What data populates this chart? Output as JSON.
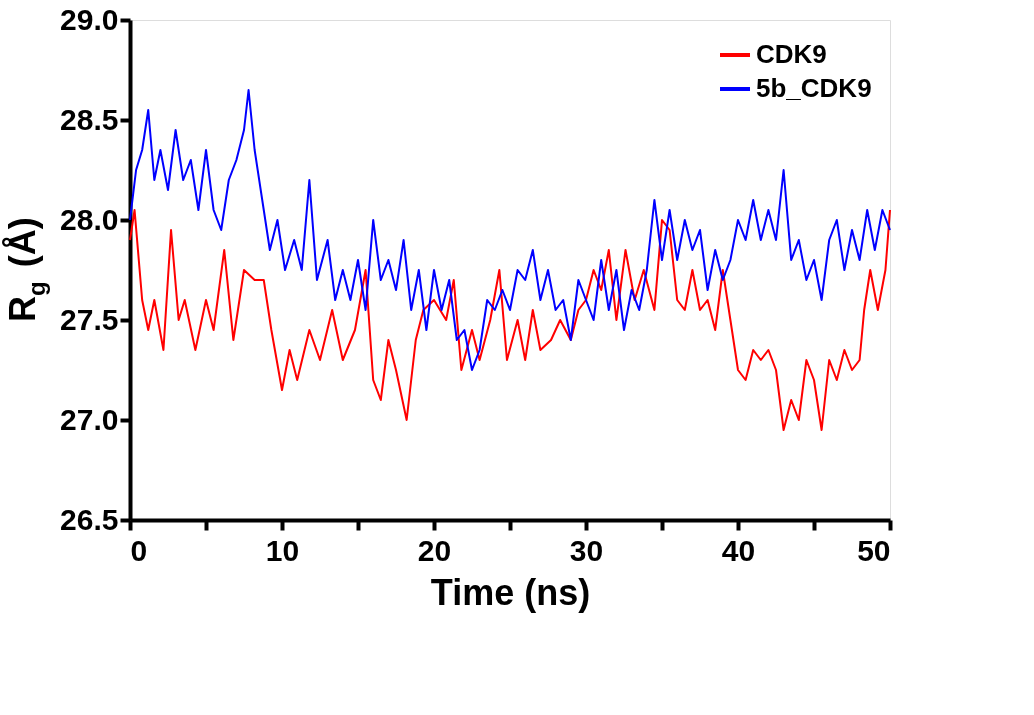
{
  "chart_data": {
    "type": "line",
    "xlabel": "Time (ns)",
    "ylabel": "R$_{g}$ (Å)",
    "xlim": [
      0,
      50
    ],
    "ylim": [
      26.5,
      29
    ],
    "xticks": [
      0,
      {
        "value": 5,
        "label": null
      },
      10,
      {
        "value": 15,
        "label": null
      },
      20,
      {
        "value": 25,
        "label": null
      },
      30,
      {
        "value": 35,
        "label": null
      },
      40,
      {
        "value": 45,
        "label": null
      },
      50
    ],
    "yticks": [
      26.5,
      {
        "value": 27,
        "label": "27.0"
      },
      27.5,
      {
        "value": 28,
        "label": "28.0"
      },
      28.5,
      {
        "value": 29,
        "label": "29.0"
      }
    ],
    "grid": false,
    "legend": "top right",
    "marker": "none",
    "line_style": "solid",
    "series": [
      {
        "name": "CDK9",
        "color": "#ff0000",
        "x": [
          0,
          0.3,
          0.8,
          1.2,
          1.6,
          2.2,
          2.7,
          3.2,
          3.6,
          4.3,
          5,
          5.5,
          6.2,
          6.8,
          7.5,
          8.2,
          8.8,
          9.3,
          10,
          10.5,
          11,
          11.8,
          12.5,
          13.3,
          14,
          14.8,
          15.5,
          16,
          16.5,
          17,
          17.5,
          18.2,
          18.8,
          19.3,
          20,
          20.8,
          21.3,
          21.8,
          22.5,
          23,
          23.7,
          24.3,
          24.8,
          25.5,
          26,
          26.5,
          27,
          27.7,
          28.3,
          29,
          29.5,
          30,
          30.5,
          31,
          31.5,
          32,
          32.6,
          33.2,
          33.8,
          34.5,
          35,
          35.5,
          36,
          36.5,
          37,
          37.5,
          38,
          38.5,
          39,
          39.5,
          40,
          40.5,
          41,
          41.5,
          42,
          42.5,
          43,
          43.5,
          44,
          44.5,
          45,
          45.5,
          46,
          46.5,
          47,
          47.5,
          48,
          48.3,
          48.7,
          49.2,
          49.7,
          50
        ],
        "values": [
          27.9,
          28.05,
          27.6,
          27.45,
          27.6,
          27.35,
          27.95,
          27.5,
          27.6,
          27.35,
          27.6,
          27.45,
          27.85,
          27.4,
          27.75,
          27.7,
          27.7,
          27.45,
          27.15,
          27.35,
          27.2,
          27.45,
          27.3,
          27.55,
          27.3,
          27.45,
          27.75,
          27.2,
          27.1,
          27.4,
          27.25,
          27.0,
          27.4,
          27.55,
          27.6,
          27.5,
          27.7,
          27.25,
          27.45,
          27.3,
          27.5,
          27.75,
          27.3,
          27.5,
          27.3,
          27.55,
          27.35,
          27.4,
          27.5,
          27.4,
          27.55,
          27.6,
          27.75,
          27.65,
          27.85,
          27.5,
          27.85,
          27.6,
          27.75,
          27.55,
          28.0,
          27.95,
          27.6,
          27.55,
          27.75,
          27.55,
          27.6,
          27.45,
          27.75,
          27.5,
          27.25,
          27.2,
          27.35,
          27.3,
          27.35,
          27.25,
          26.95,
          27.1,
          27.0,
          27.3,
          27.2,
          26.95,
          27.3,
          27.2,
          27.35,
          27.25,
          27.3,
          27.55,
          27.75,
          27.55,
          27.75,
          28.05
        ]
      },
      {
        "name": "5b_CDK9",
        "color": "#0000ff",
        "x": [
          0,
          0.4,
          0.8,
          1.2,
          1.6,
          2,
          2.5,
          3,
          3.5,
          4,
          4.5,
          5,
          5.5,
          6,
          6.5,
          7,
          7.5,
          7.8,
          8.2,
          8.7,
          9.2,
          9.7,
          10.2,
          10.8,
          11.3,
          11.8,
          12.3,
          13,
          13.5,
          14,
          14.5,
          15,
          15.5,
          16,
          16.5,
          17,
          17.5,
          18,
          18.5,
          19,
          19.5,
          20,
          20.5,
          21,
          21.5,
          22,
          22.5,
          23,
          23.5,
          24,
          24.5,
          25,
          25.5,
          26,
          26.5,
          27,
          27.5,
          28,
          28.5,
          29,
          29.5,
          30,
          30.5,
          31,
          31.5,
          32,
          32.5,
          33,
          33.5,
          34,
          34.5,
          35,
          35.5,
          36,
          36.5,
          37,
          37.5,
          38,
          38.5,
          39,
          39.5,
          40,
          40.5,
          41,
          41.5,
          42,
          42.5,
          43,
          43.5,
          44,
          44.5,
          45,
          45.5,
          46,
          46.5,
          47,
          47.5,
          48,
          48.5,
          49,
          49.5,
          50
        ],
        "values": [
          28.0,
          28.25,
          28.35,
          28.55,
          28.2,
          28.35,
          28.15,
          28.45,
          28.2,
          28.3,
          28.05,
          28.35,
          28.05,
          27.95,
          28.2,
          28.3,
          28.45,
          28.65,
          28.35,
          28.1,
          27.85,
          28.0,
          27.75,
          27.9,
          27.75,
          28.2,
          27.7,
          27.9,
          27.6,
          27.75,
          27.6,
          27.8,
          27.55,
          28.0,
          27.7,
          27.8,
          27.65,
          27.9,
          27.55,
          27.75,
          27.45,
          27.75,
          27.55,
          27.7,
          27.4,
          27.45,
          27.25,
          27.35,
          27.6,
          27.55,
          27.65,
          27.55,
          27.75,
          27.7,
          27.85,
          27.6,
          27.75,
          27.55,
          27.6,
          27.4,
          27.7,
          27.6,
          27.5,
          27.8,
          27.55,
          27.75,
          27.45,
          27.65,
          27.55,
          27.75,
          28.1,
          27.8,
          28.05,
          27.8,
          28.0,
          27.85,
          27.95,
          27.65,
          27.85,
          27.7,
          27.8,
          28.0,
          27.9,
          28.1,
          27.9,
          28.05,
          27.9,
          28.25,
          27.8,
          27.9,
          27.7,
          27.8,
          27.6,
          27.9,
          28.0,
          27.75,
          27.95,
          27.8,
          28.05,
          27.85,
          28.05,
          27.95
        ]
      }
    ]
  }
}
